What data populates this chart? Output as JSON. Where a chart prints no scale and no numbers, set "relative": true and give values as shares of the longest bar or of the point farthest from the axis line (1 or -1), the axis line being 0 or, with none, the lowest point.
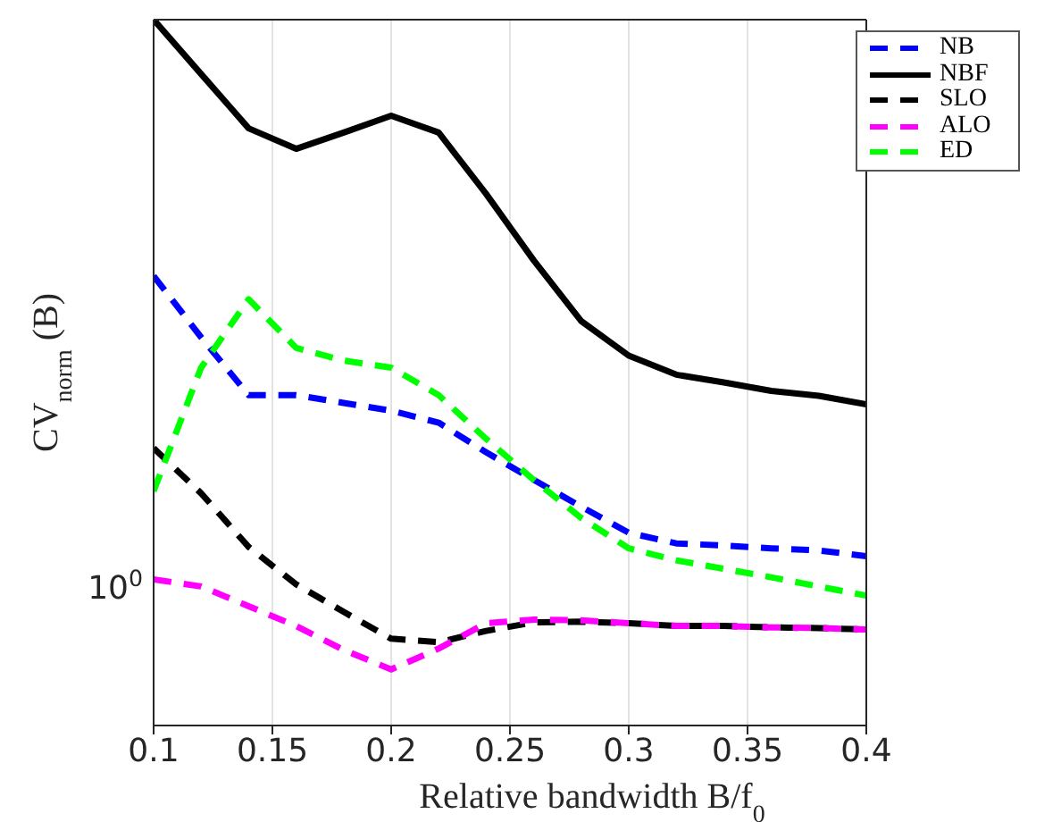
{
  "chart_data": {
    "type": "line",
    "xlabel": "Relative bandwidth B/f$_{0}$",
    "ylabel": "CV$_{norm}$ (B)",
    "x": [
      0.1,
      0.12,
      0.14,
      0.16,
      0.18,
      0.2,
      0.22,
      0.24,
      0.26,
      0.28,
      0.3,
      0.32,
      0.34,
      0.36,
      0.38,
      0.4
    ],
    "relative": true,
    "series": [
      {
        "name": "NB",
        "color": "#0000ff",
        "line_style": "dashed",
        "values": [
          0.637,
          0.55,
          0.468,
          0.468,
          0.457,
          0.446,
          0.429,
          0.387,
          0.348,
          0.31,
          0.273,
          0.258,
          0.255,
          0.251,
          0.248,
          0.24
        ]
      },
      {
        "name": "NBF",
        "color": "#000000",
        "line_style": "solid",
        "values": [
          1,
          0.923,
          0.846,
          0.817,
          0.84,
          0.864,
          0.84,
          0.753,
          0.659,
          0.573,
          0.524,
          0.497,
          0.486,
          0.474,
          0.467,
          0.455
        ]
      },
      {
        "name": "SLO",
        "color": "#000000",
        "line_style": "dashed",
        "values": [
          0.393,
          0.329,
          0.253,
          0.2,
          0.161,
          0.123,
          0.118,
          0.134,
          0.146,
          0.147,
          0.145,
          0.141,
          0.141,
          0.139,
          0.138,
          0.136
        ]
      },
      {
        "name": "ALO",
        "color": "#ff00ff",
        "line_style": "dashed",
        "values": [
          0.207,
          0.197,
          0.169,
          0.141,
          0.107,
          0.0795,
          0.109,
          0.145,
          0.15,
          0.149,
          0.145,
          0.141,
          0.141,
          0.139,
          0.138,
          0.136
        ]
      },
      {
        "name": "ED",
        "color": "#00ff00",
        "line_style": "dashed",
        "values": [
          0.332,
          0.507,
          0.604,
          0.535,
          0.517,
          0.507,
          0.468,
          0.406,
          0.348,
          0.294,
          0.251,
          0.234,
          0.222,
          0.21,
          0.197,
          0.184
        ]
      }
    ],
    "xlim": [
      0.1,
      0.4
    ],
    "xticks": [
      0.1,
      0.15,
      0.2,
      0.25,
      0.3,
      0.35,
      0.4
    ],
    "annotations": [
      "10$^{0}$"
    ],
    "grid": "x",
    "legend": "top right",
    "marker": "none"
  }
}
